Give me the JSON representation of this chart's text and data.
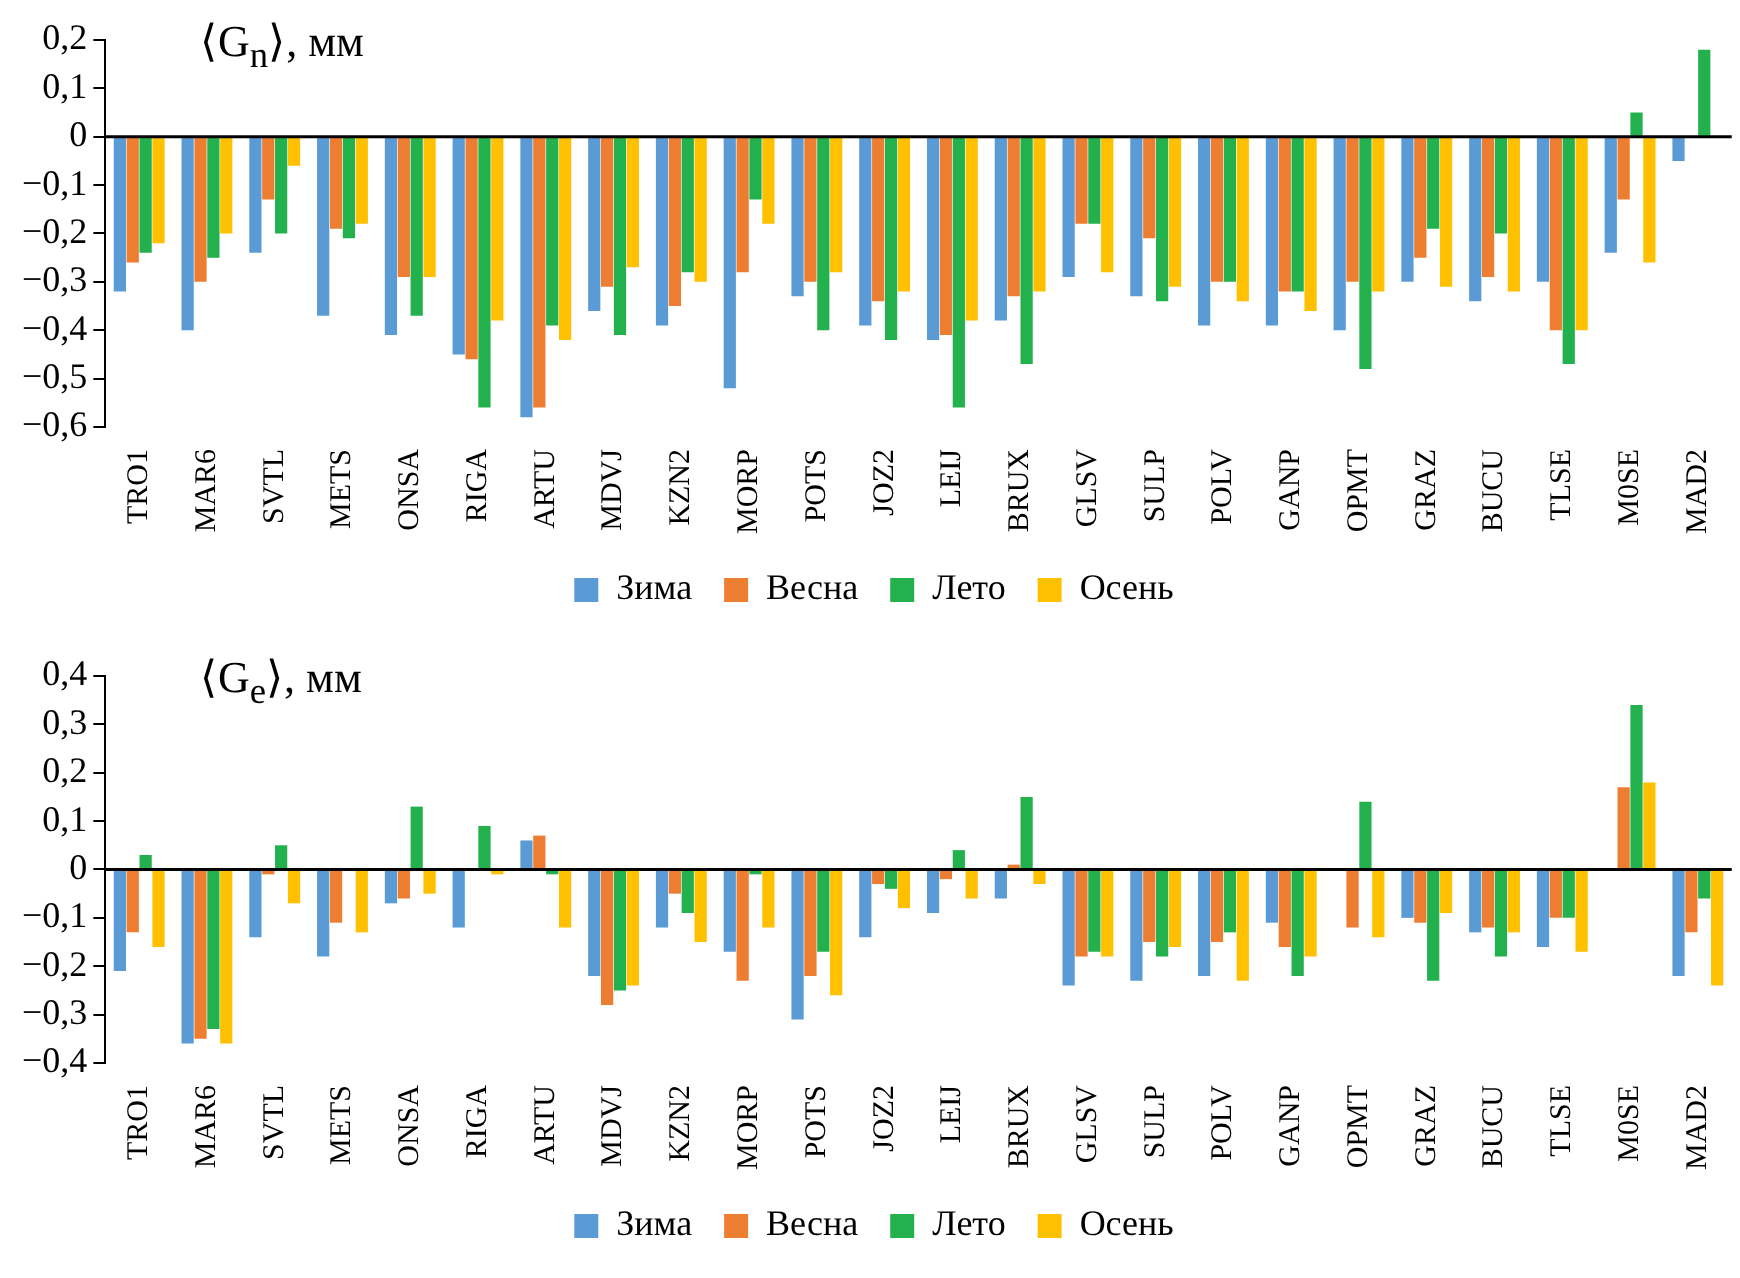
{
  "chart_data": [
    {
      "type": "bar",
      "title": "⟨G$_{n}$⟩, мм",
      "categories": [
        "TRO1",
        "MAR6",
        "SVTL",
        "METS",
        "ONSA",
        "RIGA",
        "ARTU",
        "MDVJ",
        "KZN2",
        "MORP",
        "POTS",
        "JOZ2",
        "LEIJ",
        "BRUX",
        "GLSV",
        "SULP",
        "POLV",
        "GANP",
        "OPMT",
        "GRAZ",
        "BUCU",
        "TLSE",
        "M0SE",
        "MAD2"
      ],
      "series": [
        {
          "name": "Зима",
          "color": "#5b9bd5",
          "values": [
            -0.32,
            -0.4,
            -0.24,
            -0.37,
            -0.41,
            -0.45,
            -0.58,
            -0.36,
            -0.39,
            -0.52,
            -0.33,
            -0.39,
            -0.42,
            -0.38,
            -0.29,
            -0.33,
            -0.39,
            -0.39,
            -0.4,
            -0.3,
            -0.34,
            -0.3,
            -0.24,
            -0.05
          ]
        },
        {
          "name": "Весна",
          "color": "#ed7d31",
          "values": [
            -0.26,
            -0.3,
            -0.13,
            -0.19,
            -0.29,
            -0.46,
            -0.56,
            -0.31,
            -0.35,
            -0.28,
            -0.3,
            -0.34,
            -0.41,
            -0.33,
            -0.18,
            -0.21,
            -0.3,
            -0.32,
            -0.3,
            -0.25,
            -0.29,
            -0.4,
            -0.13,
            0
          ]
        },
        {
          "name": "Лето",
          "color": "#22b14c",
          "values": [
            -0.24,
            -0.25,
            -0.2,
            -0.21,
            -0.37,
            -0.56,
            -0.39,
            -0.41,
            -0.28,
            -0.13,
            -0.4,
            -0.42,
            -0.56,
            -0.47,
            -0.18,
            -0.34,
            -0.3,
            -0.32,
            -0.48,
            -0.19,
            -0.2,
            -0.47,
            0.05,
            0.18
          ]
        },
        {
          "name": "Осень",
          "color": "#ffc000",
          "values": [
            -0.22,
            -0.2,
            -0.06,
            -0.18,
            -0.29,
            -0.38,
            -0.42,
            -0.27,
            -0.3,
            -0.18,
            -0.28,
            -0.32,
            -0.38,
            -0.32,
            -0.28,
            -0.31,
            -0.34,
            -0.36,
            -0.32,
            -0.31,
            -0.32,
            -0.4,
            -0.26,
            null
          ]
        }
      ],
      "ylim": [
        -0.6,
        0.2
      ],
      "yticks": [
        {
          "value": -0.6,
          "label": "−0,6"
        },
        {
          "value": -0.5,
          "label": "−0,5"
        },
        {
          "value": -0.4,
          "label": "−0,4"
        },
        {
          "value": -0.3,
          "label": "−0,3"
        },
        {
          "value": -0.2,
          "label": "−0,2"
        },
        {
          "value": -0.1,
          "label": "−0,1"
        },
        0,
        {
          "value": 0.1,
          "label": "0,1"
        },
        {
          "value": 0.2,
          "label": "0,2"
        }
      ],
      "ref_lines": [
        {
          "axis": "y",
          "value": 0,
          "color": "#000000"
        }
      ],
      "legend": "bottom"
    },
    {
      "type": "bar",
      "title": "⟨G$_{e}$⟩, мм",
      "categories": [
        "TRO1",
        "MAR6",
        "SVTL",
        "METS",
        "ONSA",
        "RIGA",
        "ARTU",
        "MDVJ",
        "KZN2",
        "MORP",
        "POTS",
        "JOZ2",
        "LEIJ",
        "BRUX",
        "GLSV",
        "SULP",
        "POLV",
        "GANP",
        "OPMT",
        "GRAZ",
        "BUCU",
        "TLSE",
        "M0SE",
        "MAD2"
      ],
      "series": [
        {
          "name": "Зима",
          "color": "#5b9bd5",
          "values": [
            -0.21,
            -0.36,
            -0.14,
            -0.18,
            -0.07,
            -0.12,
            0.06,
            -0.22,
            -0.12,
            -0.17,
            -0.31,
            -0.14,
            -0.09,
            -0.06,
            -0.24,
            -0.23,
            -0.22,
            -0.11,
            0,
            -0.1,
            -0.13,
            -0.16,
            0,
            -0.22
          ]
        },
        {
          "name": "Весна",
          "color": "#ed7d31",
          "values": [
            -0.13,
            -0.35,
            -0.01,
            -0.11,
            -0.06,
            0,
            0.07,
            -0.28,
            -0.05,
            -0.23,
            -0.22,
            -0.03,
            -0.02,
            0.01,
            -0.18,
            -0.15,
            -0.15,
            -0.16,
            -0.12,
            -0.11,
            -0.12,
            -0.1,
            0.17,
            -0.13
          ]
        },
        {
          "name": "Лето",
          "color": "#22b14c",
          "values": [
            0.03,
            -0.33,
            0.05,
            0,
            0.13,
            0.09,
            -0.01,
            -0.25,
            -0.09,
            -0.01,
            -0.17,
            -0.04,
            0.04,
            0.15,
            -0.17,
            -0.18,
            -0.13,
            -0.22,
            0.14,
            -0.23,
            -0.18,
            -0.1,
            0.34,
            -0.06
          ]
        },
        {
          "name": "Осень",
          "color": "#ffc000",
          "values": [
            -0.16,
            -0.36,
            -0.07,
            -0.13,
            -0.05,
            -0.01,
            -0.12,
            -0.24,
            -0.15,
            -0.12,
            -0.26,
            -0.08,
            -0.06,
            -0.03,
            -0.18,
            -0.16,
            -0.23,
            -0.18,
            -0.14,
            -0.09,
            -0.13,
            -0.17,
            0.18,
            -0.24
          ]
        }
      ],
      "ylim": [
        -0.4,
        0.4
      ],
      "yticks": [
        {
          "value": -0.4,
          "label": "−0,4"
        },
        {
          "value": -0.3,
          "label": "−0,3"
        },
        {
          "value": -0.2,
          "label": "−0,2"
        },
        {
          "value": -0.1,
          "label": "−0,1"
        },
        0,
        {
          "value": 0.1,
          "label": "0,1"
        },
        {
          "value": 0.2,
          "label": "0,2"
        },
        {
          "value": 0.3,
          "label": "0,3"
        },
        {
          "value": 0.4,
          "label": "0,4"
        }
      ],
      "ref_lines": [
        {
          "axis": "y",
          "value": 0,
          "color": "#000000"
        }
      ],
      "legend": "bottom"
    }
  ]
}
